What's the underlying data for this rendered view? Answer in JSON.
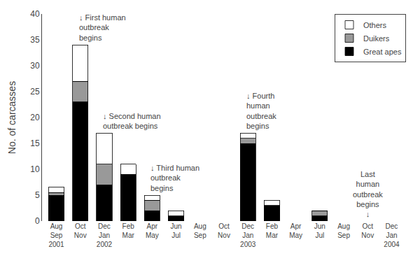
{
  "chart_data": {
    "type": "bar",
    "stacked": true,
    "categories": [
      "Aug\nSep\n2001",
      "Oct\nNov",
      "Dec\nJan\n2002",
      "Feb\nMar",
      "Apr\nMay",
      "Jun\nJul",
      "Aug\nSep",
      "Oct\nNov",
      "Dec\nJan\n2003",
      "Feb\nMar",
      "Apr\nMay",
      "Jun\nJul",
      "Aug\nSep",
      "Oct\nNov",
      "Dec\nJan\n2004"
    ],
    "series": [
      {
        "name": "Great apes",
        "color": "#000000",
        "values": [
          5,
          23,
          7,
          9,
          2,
          1,
          0,
          0,
          15,
          3,
          0,
          1,
          0,
          0,
          0
        ]
      },
      {
        "name": "Duikers",
        "color": "#999999",
        "values": [
          0.5,
          4,
          4,
          0,
          2,
          0,
          0,
          0,
          1,
          0,
          0,
          1,
          0,
          0,
          0
        ]
      },
      {
        "name": "Others",
        "color": "#ffffff",
        "values": [
          1,
          7,
          6,
          2,
          1,
          1,
          0,
          0,
          1,
          1,
          0,
          0,
          0,
          0,
          0
        ]
      }
    ],
    "ylabel": "No. of carcasses",
    "ylim": [
      0,
      40
    ],
    "yticks": [
      0,
      5,
      10,
      15,
      20,
      25,
      30,
      35,
      40
    ],
    "annotations": [
      "↓ First human\noutbreak\nbegins",
      "↓ Second human\noutbreak begins",
      "↓ Third human\noutbreak\nbegins",
      "↓ Fourth\nhuman\noutbreak\nbegins",
      "Last\nhuman\noutbreak\nbegins\n↓"
    ],
    "legend": "upper right",
    "grid": false
  }
}
